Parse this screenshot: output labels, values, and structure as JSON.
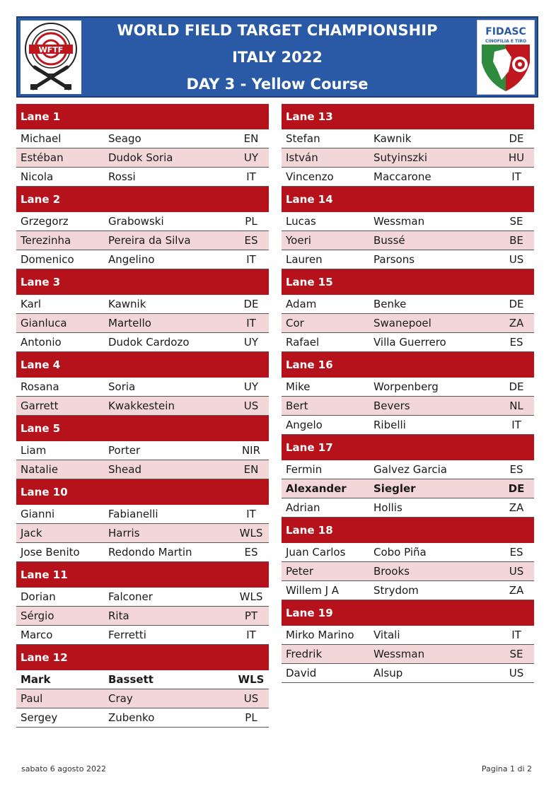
{
  "header": {
    "line1": "WORLD FIELD TARGET CHAMPIONSHIP",
    "line2": "ITALY 2022",
    "line3": "DAY 3 - Yellow Course",
    "left_logo_text": "WFTF",
    "left_logo_ring": "WORLD FIELD TARGET FEDERATION",
    "right_logo_title": "FIDASC",
    "right_logo_subtitle": "CINOFILIA E TIRO"
  },
  "colors": {
    "header_bg": "#2a5aa6",
    "lane_bg": "#b5121b",
    "alt_row": "#f2d6d8"
  },
  "left_lanes": [
    {
      "label": "Lane  1",
      "rows": [
        {
          "first": "Michael",
          "last": "Seago",
          "nat": "EN"
        },
        {
          "first": "Estéban",
          "last": "Dudok Soria",
          "nat": "UY"
        },
        {
          "first": "Nicola",
          "last": "Rossi",
          "nat": "IT"
        }
      ]
    },
    {
      "label": "Lane  2",
      "rows": [
        {
          "first": "Grzegorz",
          "last": "Grabowski",
          "nat": "PL"
        },
        {
          "first": "Terezinha",
          "last": "Pereira da Silva",
          "nat": "ES"
        },
        {
          "first": "Domenico",
          "last": "Angelino",
          "nat": "IT"
        }
      ]
    },
    {
      "label": "Lane  3",
      "rows": [
        {
          "first": "Karl",
          "last": "Kawnik",
          "nat": "DE"
        },
        {
          "first": "Gianluca",
          "last": "Martello",
          "nat": "IT"
        },
        {
          "first": "Antonio",
          "last": "Dudok Cardozo",
          "nat": "UY"
        }
      ]
    },
    {
      "label": "Lane  4",
      "rows": [
        {
          "first": "Rosana",
          "last": "Soria",
          "nat": "UY"
        },
        {
          "first": "Garrett",
          "last": "Kwakkestein",
          "nat": "US"
        }
      ]
    },
    {
      "label": "Lane  5",
      "rows": [
        {
          "first": "Liam",
          "last": "Porter",
          "nat": "NIR"
        },
        {
          "first": "Natalie",
          "last": "Shead",
          "nat": "EN"
        }
      ]
    },
    {
      "label": "Lane  10",
      "rows": [
        {
          "first": "Gianni",
          "last": "Fabianelli",
          "nat": "IT"
        },
        {
          "first": "Jack",
          "last": "Harris",
          "nat": "WLS"
        },
        {
          "first": "Jose Benito",
          "last": "Redondo Martin",
          "nat": "ES"
        }
      ]
    },
    {
      "label": "Lane  11",
      "rows": [
        {
          "first": "Dorian",
          "last": "Falconer",
          "nat": "WLS"
        },
        {
          "first": "Sérgio",
          "last": "Rita",
          "nat": "PT"
        },
        {
          "first": "Marco",
          "last": "Ferretti",
          "nat": "IT"
        }
      ]
    },
    {
      "label": "Lane  12",
      "rows": [
        {
          "first": "Mark",
          "last": "Bassett",
          "nat": "WLS"
        },
        {
          "first": "Paul",
          "last": "Cray",
          "nat": "US"
        },
        {
          "first": "Sergey",
          "last": "Zubenko",
          "nat": "PL"
        }
      ]
    }
  ],
  "right_lanes": [
    {
      "label": "Lane  13",
      "rows": [
        {
          "first": "Stefan",
          "last": "Kawnik",
          "nat": "DE"
        },
        {
          "first": "István",
          "last": "Sutyinszki",
          "nat": "HU"
        },
        {
          "first": "Vincenzo",
          "last": "Maccarone",
          "nat": "IT"
        }
      ]
    },
    {
      "label": "Lane  14",
      "rows": [
        {
          "first": "Lucas",
          "last": "Wessman",
          "nat": "SE"
        },
        {
          "first": "Yoeri",
          "last": "Bussé",
          "nat": "BE"
        },
        {
          "first": "Lauren",
          "last": "Parsons",
          "nat": "US"
        }
      ]
    },
    {
      "label": "Lane  15",
      "rows": [
        {
          "first": "Adam",
          "last": "Benke",
          "nat": "DE"
        },
        {
          "first": "Cor",
          "last": "Swanepoel",
          "nat": "ZA"
        },
        {
          "first": "Rafael",
          "last": "Villa Guerrero",
          "nat": "ES"
        }
      ]
    },
    {
      "label": "Lane  16",
      "rows": [
        {
          "first": "Mike",
          "last": "Worpenberg",
          "nat": "DE"
        },
        {
          "first": "Bert",
          "last": "Bevers",
          "nat": "NL"
        },
        {
          "first": "Angelo",
          "last": "Ribelli",
          "nat": "IT"
        }
      ]
    },
    {
      "label": "Lane  17",
      "rows": [
        {
          "first": "Fermin",
          "last": "Galvez Garcia",
          "nat": "ES"
        },
        {
          "first": "Alexander",
          "last": "Siegler",
          "nat": "DE"
        },
        {
          "first": "Adrian",
          "last": "Hollis",
          "nat": "ZA"
        }
      ]
    },
    {
      "label": "Lane  18",
      "rows": [
        {
          "first": "Juan Carlos",
          "last": "Cobo Piña",
          "nat": "ES"
        },
        {
          "first": "Peter",
          "last": "Brooks",
          "nat": "US"
        },
        {
          "first": "Willem J A",
          "last": "Strydom",
          "nat": "ZA"
        }
      ]
    },
    {
      "label": "Lane  19",
      "rows": [
        {
          "first": "Mirko Marino",
          "last": "Vitali",
          "nat": "IT"
        },
        {
          "first": "Fredrik",
          "last": "Wessman",
          "nat": "SE"
        },
        {
          "first": "David",
          "last": "Alsup",
          "nat": "US"
        }
      ]
    }
  ],
  "footer": {
    "date": "sabato 6 agosto 2022",
    "page": "Pagina 1 di 2"
  }
}
